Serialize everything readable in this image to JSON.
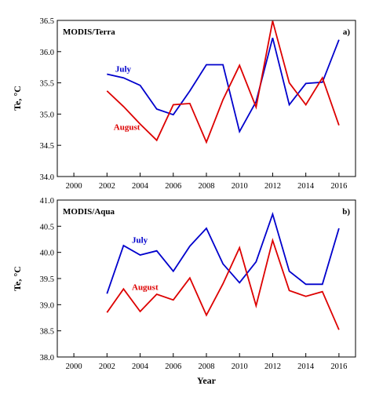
{
  "chart_data": [
    {
      "type": "line",
      "panel_title": "MODIS/Terra",
      "panel_letter": "a)",
      "ylabel": "Te, °C",
      "xlabel": "",
      "xlim": [
        1999,
        2017
      ],
      "ylim": [
        34.0,
        36.5
      ],
      "xticks": [
        2000,
        2002,
        2004,
        2006,
        2008,
        2010,
        2012,
        2014,
        2016
      ],
      "yticks": [
        "34.0",
        "34.5",
        "35.0",
        "35.5",
        "36.0",
        "36.5"
      ],
      "x": [
        2002,
        2003,
        2004,
        2005,
        2006,
        2007,
        2008,
        2009,
        2010,
        2011,
        2012,
        2013,
        2014,
        2015,
        2016
      ],
      "series": [
        {
          "name": "July",
          "color": "#0000cc",
          "values": [
            35.64,
            35.58,
            35.46,
            35.08,
            34.99,
            35.37,
            35.79,
            35.79,
            34.72,
            35.2,
            36.22,
            35.15,
            35.49,
            35.51,
            36.19
          ]
        },
        {
          "name": "August",
          "color": "#dd0000",
          "values": [
            35.37,
            35.12,
            34.84,
            34.58,
            35.15,
            35.17,
            34.55,
            35.23,
            35.78,
            35.11,
            36.49,
            35.5,
            35.15,
            35.58,
            34.82
          ]
        }
      ],
      "labels": [
        {
          "text": "July",
          "color": "#0000cc",
          "at": [
            2002.5,
            35.68
          ]
        },
        {
          "text": "August",
          "color": "#dd0000",
          "at": [
            2002.4,
            34.75
          ]
        }
      ],
      "grid": false
    },
    {
      "type": "line",
      "panel_title": "MODIS/Aqua",
      "panel_letter": "b)",
      "ylabel": "Te, °C",
      "xlabel": "Year",
      "xlim": [
        1999,
        2017
      ],
      "ylim": [
        38.0,
        41.0
      ],
      "xticks": [
        2000,
        2002,
        2004,
        2006,
        2008,
        2010,
        2012,
        2014,
        2016
      ],
      "yticks": [
        "38.0",
        "38.5",
        "39.0",
        "39.5",
        "40.0",
        "40.5",
        "41.0"
      ],
      "x": [
        2002,
        2003,
        2004,
        2005,
        2006,
        2007,
        2008,
        2009,
        2010,
        2011,
        2012,
        2013,
        2014,
        2015,
        2016
      ],
      "series": [
        {
          "name": "July",
          "color": "#0000cc",
          "values": [
            39.21,
            40.13,
            39.95,
            40.03,
            39.64,
            40.12,
            40.46,
            39.78,
            39.42,
            39.82,
            40.73,
            39.64,
            39.39,
            39.39,
            40.46
          ]
        },
        {
          "name": "August",
          "color": "#dd0000",
          "values": [
            38.85,
            39.3,
            38.87,
            39.2,
            39.09,
            39.51,
            38.8,
            39.4,
            40.09,
            38.98,
            40.23,
            39.27,
            39.16,
            39.25,
            38.52
          ]
        }
      ],
      "labels": [
        {
          "text": "July",
          "color": "#0000cc",
          "at": [
            2003.5,
            40.18
          ]
        },
        {
          "text": "August",
          "color": "#dd0000",
          "at": [
            2003.5,
            39.28
          ]
        }
      ],
      "grid": false
    }
  ]
}
